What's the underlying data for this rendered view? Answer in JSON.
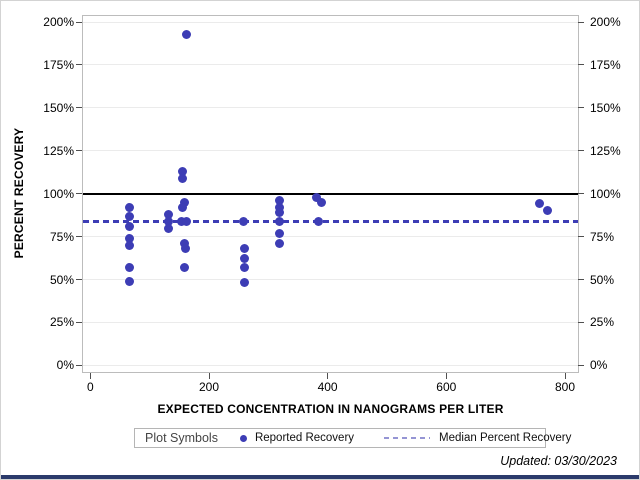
{
  "footer": {
    "updated": "Updated: 03/30/2023"
  },
  "legend": {
    "title": "Plot Symbols",
    "entries": [
      {
        "label": "Reported Recovery",
        "marker": "filled-circle"
      },
      {
        "label": "Median Percent Recovery",
        "marker": "dashed-line"
      }
    ]
  },
  "page": {
    "bottom_bar_color": "#2b3a6b"
  },
  "chart_data": {
    "type": "scatter",
    "title": "",
    "xlabel": "EXPECTED CONCENTRATION IN NANOGRAMS PER LITER",
    "ylabel": "PERCENT RECOVERY",
    "xlim": [
      0,
      800
    ],
    "ylim_percent": [
      0,
      200
    ],
    "x_ticks": [
      0,
      200,
      400,
      600,
      800
    ],
    "y_ticks_percent": [
      0,
      25,
      50,
      75,
      100,
      125,
      150,
      175,
      200
    ],
    "grid": "horizontal",
    "legend_position": "bottom",
    "reference_line_percent": 100,
    "median_percent": 84,
    "colors": {
      "marker": "#3d3db5",
      "median_line": "#3d3db5",
      "legend_dash": "#9595d4",
      "reference_line": "#000000",
      "grid": "#ebebeb",
      "tick": "#4f4f4f"
    },
    "series": [
      {
        "name": "Reported Recovery",
        "type": "scatter",
        "points": [
          [
            66,
            92
          ],
          [
            66,
            87
          ],
          [
            66,
            81
          ],
          [
            66,
            74
          ],
          [
            66,
            70
          ],
          [
            66,
            57
          ],
          [
            66,
            49
          ],
          [
            131,
            88
          ],
          [
            131,
            84
          ],
          [
            131,
            80
          ],
          [
            162,
            193
          ],
          [
            156,
            113
          ],
          [
            156,
            109
          ],
          [
            158,
            95
          ],
          [
            156,
            92
          ],
          [
            154,
            84
          ],
          [
            162,
            84
          ],
          [
            158,
            71
          ],
          [
            161,
            68
          ],
          [
            158,
            57
          ],
          [
            258,
            84
          ],
          [
            259,
            68
          ],
          [
            260,
            62
          ],
          [
            259,
            57
          ],
          [
            260,
            48
          ],
          [
            318,
            96
          ],
          [
            318,
            92
          ],
          [
            319,
            89
          ],
          [
            318,
            84
          ],
          [
            318,
            77
          ],
          [
            318,
            71
          ],
          [
            381,
            98
          ],
          [
            390,
            95
          ],
          [
            385,
            84
          ],
          [
            757,
            94
          ],
          [
            771,
            90
          ]
        ]
      },
      {
        "name": "Median Percent Recovery",
        "type": "hline",
        "value_percent": 84,
        "style": "dashed"
      }
    ]
  }
}
